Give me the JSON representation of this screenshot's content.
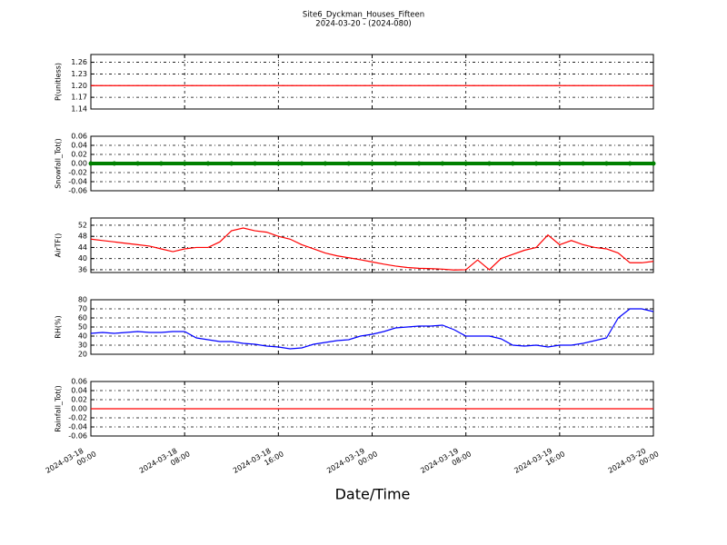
{
  "title": "Site6_Dyckman_Houses_Fifteen",
  "subtitle": "2024-03-20 - (2024-080)",
  "xlabel": "Date/Time",
  "chart_data": [
    {
      "type": "line",
      "ylabel": "P(unitless)",
      "color": "#ff0000",
      "grid": true,
      "xlim": [
        "2024-03-18 00:00",
        "2024-03-20 00:00"
      ],
      "xticks": [
        "2024-03-18 00:00",
        "2024-03-18 08:00",
        "2024-03-18 16:00",
        "2024-03-19 00:00",
        "2024-03-19 08:00",
        "2024-03-19 16:00",
        "2024-03-20 00:00"
      ],
      "ylim": [
        1.14,
        1.28
      ],
      "yticks": [
        1.14,
        1.17,
        {
          "value": 1.2,
          "label": "1.20"
        },
        1.23,
        1.26
      ],
      "x": [
        "2024-03-18 00:00",
        "2024-03-18 02:00",
        "2024-03-18 04:00",
        "2024-03-18 06:00",
        "2024-03-18 08:00",
        "2024-03-18 10:00",
        "2024-03-18 12:00",
        "2024-03-18 14:00",
        "2024-03-18 16:00",
        "2024-03-18 18:00",
        "2024-03-18 20:00",
        "2024-03-18 22:00",
        "2024-03-19 00:00",
        "2024-03-19 02:00",
        "2024-03-19 04:00",
        "2024-03-19 06:00",
        "2024-03-19 08:00",
        "2024-03-19 10:00",
        "2024-03-19 12:00",
        "2024-03-19 14:00",
        "2024-03-19 16:00",
        "2024-03-19 18:00",
        "2024-03-19 20:00",
        "2024-03-19 22:00",
        "2024-03-20 00:00"
      ],
      "values": [
        1.2,
        1.2,
        1.2,
        1.2,
        1.2,
        1.2,
        1.2,
        1.2,
        1.2,
        1.2,
        1.2,
        1.2,
        1.2,
        1.2,
        1.2,
        1.2,
        1.2,
        1.2,
        1.2,
        1.2,
        1.2,
        1.2,
        1.2,
        1.2,
        1.2
      ]
    },
    {
      "type": "scatter",
      "ylabel": "Snowfall_Tot()",
      "color": "#008000",
      "grid": true,
      "xlim": [
        "2024-03-18 00:00",
        "2024-03-20 00:00"
      ],
      "xticks": [
        "2024-03-18 00:00",
        "2024-03-18 08:00",
        "2024-03-18 16:00",
        "2024-03-19 00:00",
        "2024-03-19 08:00",
        "2024-03-19 16:00",
        "2024-03-20 00:00"
      ],
      "ylim": [
        -0.06,
        0.06
      ],
      "yticks": [
        -0.06,
        -0.04,
        -0.02,
        {
          "value": 0,
          "label": "0.00"
        },
        0.02,
        0.04,
        0.06
      ],
      "x": [
        "2024-03-18 00:00",
        "2024-03-18 02:00",
        "2024-03-18 04:00",
        "2024-03-18 06:00",
        "2024-03-18 08:00",
        "2024-03-18 10:00",
        "2024-03-18 12:00",
        "2024-03-18 14:00",
        "2024-03-18 16:00",
        "2024-03-18 18:00",
        "2024-03-18 20:00",
        "2024-03-18 22:00",
        "2024-03-19 00:00",
        "2024-03-19 02:00",
        "2024-03-19 04:00",
        "2024-03-19 06:00",
        "2024-03-19 08:00",
        "2024-03-19 10:00",
        "2024-03-19 12:00",
        "2024-03-19 14:00",
        "2024-03-19 16:00",
        "2024-03-19 18:00",
        "2024-03-19 20:00",
        "2024-03-19 22:00",
        "2024-03-20 00:00"
      ],
      "values": [
        0,
        0,
        0,
        0,
        0,
        0,
        0,
        0,
        0,
        0,
        0,
        0,
        0,
        0,
        0,
        0,
        0,
        0,
        0,
        0,
        0,
        0,
        0,
        0,
        0
      ]
    },
    {
      "type": "line",
      "ylabel": "AirTF()",
      "color": "#ff0000",
      "grid": true,
      "xlim": [
        "2024-03-18 00:00",
        "2024-03-20 00:00"
      ],
      "xticks": [
        "2024-03-18 00:00",
        "2024-03-18 08:00",
        "2024-03-18 16:00",
        "2024-03-19 00:00",
        "2024-03-19 08:00",
        "2024-03-19 16:00",
        "2024-03-20 00:00"
      ],
      "ylim": [
        35,
        54.6
      ],
      "yticks": [
        36,
        40,
        44,
        48,
        52
      ],
      "x": [
        "2024-03-18 00:00",
        "2024-03-18 01:00",
        "2024-03-18 02:00",
        "2024-03-18 03:00",
        "2024-03-18 04:00",
        "2024-03-18 05:00",
        "2024-03-18 06:00",
        "2024-03-18 07:00",
        "2024-03-18 08:00",
        "2024-03-18 09:00",
        "2024-03-18 10:00",
        "2024-03-18 11:00",
        "2024-03-18 12:00",
        "2024-03-18 13:00",
        "2024-03-18 14:00",
        "2024-03-18 15:00",
        "2024-03-18 16:00",
        "2024-03-18 17:00",
        "2024-03-18 18:00",
        "2024-03-18 19:00",
        "2024-03-18 20:00",
        "2024-03-18 21:00",
        "2024-03-18 22:00",
        "2024-03-18 23:00",
        "2024-03-19 00:00",
        "2024-03-19 01:00",
        "2024-03-19 02:00",
        "2024-03-19 03:00",
        "2024-03-19 04:00",
        "2024-03-19 05:00",
        "2024-03-19 06:00",
        "2024-03-19 07:00",
        "2024-03-19 08:00",
        "2024-03-19 09:00",
        "2024-03-19 10:00",
        "2024-03-19 11:00",
        "2024-03-19 12:00",
        "2024-03-19 13:00",
        "2024-03-19 14:00",
        "2024-03-19 15:00",
        "2024-03-19 16:00",
        "2024-03-19 17:00",
        "2024-03-19 18:00",
        "2024-03-19 19:00",
        "2024-03-19 20:00",
        "2024-03-19 21:00",
        "2024-03-19 22:00",
        "2024-03-19 23:00",
        "2024-03-20 00:00"
      ],
      "values": [
        47,
        46.5,
        46,
        45.5,
        45,
        44.5,
        43.5,
        42.5,
        43.5,
        44,
        44,
        46,
        50,
        51,
        50,
        49.5,
        48,
        47,
        45,
        43.5,
        42,
        41,
        40.3,
        39.6,
        38.8,
        38,
        37.3,
        36.8,
        36.5,
        36.4,
        36.2,
        35.9,
        36,
        39.5,
        36,
        40,
        41.5,
        43,
        44,
        48.5,
        45,
        46.5,
        45,
        44,
        43.5,
        42,
        38.5,
        38.5,
        39
      ]
    },
    {
      "type": "line",
      "ylabel": "RH(%)",
      "color": "#0000ff",
      "grid": true,
      "xlim": [
        "2024-03-18 00:00",
        "2024-03-20 00:00"
      ],
      "xticks": [
        "2024-03-18 00:00",
        "2024-03-18 08:00",
        "2024-03-18 16:00",
        "2024-03-19 00:00",
        "2024-03-19 08:00",
        "2024-03-19 16:00",
        "2024-03-20 00:00"
      ],
      "ylim": [
        20,
        80
      ],
      "yticks": [
        20,
        30,
        40,
        50,
        60,
        70,
        80
      ],
      "x": [
        "2024-03-18 00:00",
        "2024-03-18 01:00",
        "2024-03-18 02:00",
        "2024-03-18 03:00",
        "2024-03-18 04:00",
        "2024-03-18 05:00",
        "2024-03-18 06:00",
        "2024-03-18 07:00",
        "2024-03-18 08:00",
        "2024-03-18 09:00",
        "2024-03-18 10:00",
        "2024-03-18 11:00",
        "2024-03-18 12:00",
        "2024-03-18 13:00",
        "2024-03-18 14:00",
        "2024-03-18 15:00",
        "2024-03-18 16:00",
        "2024-03-18 17:00",
        "2024-03-18 18:00",
        "2024-03-18 19:00",
        "2024-03-18 20:00",
        "2024-03-18 21:00",
        "2024-03-18 22:00",
        "2024-03-18 23:00",
        "2024-03-19 00:00",
        "2024-03-19 01:00",
        "2024-03-19 02:00",
        "2024-03-19 03:00",
        "2024-03-19 04:00",
        "2024-03-19 05:00",
        "2024-03-19 06:00",
        "2024-03-19 07:00",
        "2024-03-19 08:00",
        "2024-03-19 09:00",
        "2024-03-19 10:00",
        "2024-03-19 11:00",
        "2024-03-19 12:00",
        "2024-03-19 13:00",
        "2024-03-19 14:00",
        "2024-03-19 15:00",
        "2024-03-19 16:00",
        "2024-03-19 17:00",
        "2024-03-19 18:00",
        "2024-03-19 19:00",
        "2024-03-19 20:00",
        "2024-03-19 21:00",
        "2024-03-19 22:00",
        "2024-03-19 23:00",
        "2024-03-20 00:00"
      ],
      "values": [
        43,
        44,
        43,
        44,
        45,
        44,
        44,
        45,
        45,
        38,
        36,
        34,
        34,
        32,
        31,
        29,
        28,
        26,
        27,
        31,
        33,
        35,
        36,
        40,
        42,
        45,
        49,
        50,
        51,
        51,
        52,
        47,
        40,
        40,
        40,
        37,
        30,
        29,
        30,
        28,
        30,
        30,
        32,
        35,
        38,
        60,
        70,
        70,
        67
      ]
    },
    {
      "type": "line",
      "ylabel": "Rainfall_Tot()",
      "color": "#ff0000",
      "grid": true,
      "xlim": [
        "2024-03-18 00:00",
        "2024-03-20 00:00"
      ],
      "xticks": [
        "2024-03-18 00:00",
        "2024-03-18 08:00",
        "2024-03-18 16:00",
        "2024-03-19 00:00",
        "2024-03-19 08:00",
        "2024-03-19 16:00",
        "2024-03-20 00:00"
      ],
      "ylim": [
        -0.06,
        0.06
      ],
      "yticks": [
        -0.06,
        -0.04,
        -0.02,
        {
          "value": 0,
          "label": "0.00"
        },
        0.02,
        0.04,
        0.06
      ],
      "x": [
        "2024-03-18 00:00",
        "2024-03-18 02:00",
        "2024-03-18 04:00",
        "2024-03-18 06:00",
        "2024-03-18 08:00",
        "2024-03-18 10:00",
        "2024-03-18 12:00",
        "2024-03-18 14:00",
        "2024-03-18 16:00",
        "2024-03-18 18:00",
        "2024-03-18 20:00",
        "2024-03-18 22:00",
        "2024-03-19 00:00",
        "2024-03-19 02:00",
        "2024-03-19 04:00",
        "2024-03-19 06:00",
        "2024-03-19 08:00",
        "2024-03-19 10:00",
        "2024-03-19 12:00",
        "2024-03-19 14:00",
        "2024-03-19 16:00",
        "2024-03-19 18:00",
        "2024-03-19 20:00",
        "2024-03-19 22:00",
        "2024-03-20 00:00"
      ],
      "values": [
        0,
        0,
        0,
        0,
        0,
        0,
        0,
        0,
        0,
        0,
        0,
        0,
        0,
        0,
        0,
        0,
        0,
        0,
        0,
        0,
        0,
        0,
        0,
        0,
        0
      ]
    }
  ]
}
